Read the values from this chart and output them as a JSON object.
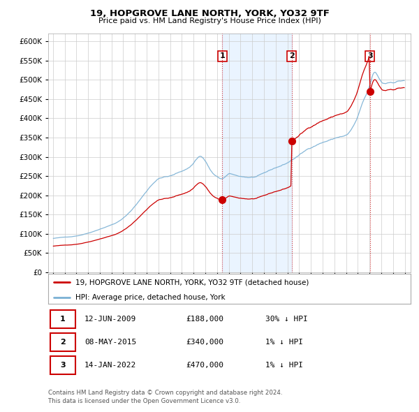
{
  "title": "19, HOPGROVE LANE NORTH, YORK, YO32 9TF",
  "subtitle": "Price paid vs. HM Land Registry's House Price Index (HPI)",
  "sale_label": "19, HOPGROVE LANE NORTH, YORK, YO32 9TF (detached house)",
  "hpi_label": "HPI: Average price, detached house, York",
  "sale_color": "#cc0000",
  "hpi_color": "#7ab0d4",
  "hpi_fill_color": "#ddeeff",
  "sale_points": [
    {
      "date": 2009.44,
      "value": 188000,
      "label": "1"
    },
    {
      "date": 2015.36,
      "value": 340000,
      "label": "2"
    },
    {
      "date": 2022.04,
      "value": 470000,
      "label": "3"
    }
  ],
  "transaction_table": [
    {
      "num": "1",
      "date": "12-JUN-2009",
      "price": "£188,000",
      "hpi": "30% ↓ HPI"
    },
    {
      "num": "2",
      "date": "08-MAY-2015",
      "price": "£340,000",
      "hpi": "1% ↓ HPI"
    },
    {
      "num": "3",
      "date": "14-JAN-2022",
      "price": "£470,000",
      "hpi": "1% ↓ HPI"
    }
  ],
  "footer": "Contains HM Land Registry data © Crown copyright and database right 2024.\nThis data is licensed under the Open Government Licence v3.0.",
  "ylim": [
    0,
    620000
  ],
  "yticks": [
    0,
    50000,
    100000,
    150000,
    200000,
    250000,
    300000,
    350000,
    400000,
    450000,
    500000,
    550000,
    600000
  ],
  "xlim_start": 1994.6,
  "xlim_end": 2025.5,
  "vline_dates": [
    2009.44,
    2015.36,
    2022.04
  ],
  "background_color": "#ffffff",
  "grid_color": "#cccccc"
}
